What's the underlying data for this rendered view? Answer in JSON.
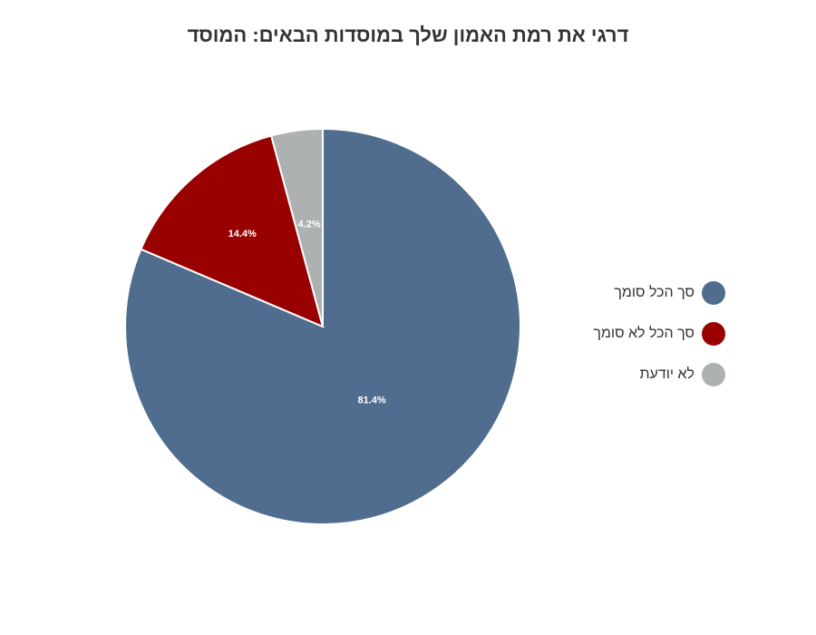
{
  "title": "דרגי את רמת האמון שלך במוסדות הבאים: המוסד",
  "chart_data": {
    "type": "pie",
    "title": "דרגי את רמת האמון שלך במוסדות הבאים: המוסד",
    "series": [
      {
        "name": "סך הכל סומך",
        "value": 81.4,
        "label": "81.4%",
        "color": "#506d8f"
      },
      {
        "name": "סך הכל לא סומך",
        "value": 14.4,
        "label": "14.4%",
        "color": "#990000"
      },
      {
        "name": "לא יודעת",
        "value": 4.2,
        "label": "4.2%",
        "color": "#adb1b2"
      }
    ],
    "start_angle": "12 o'clock",
    "direction": "clockwise",
    "legend_position": "right"
  }
}
